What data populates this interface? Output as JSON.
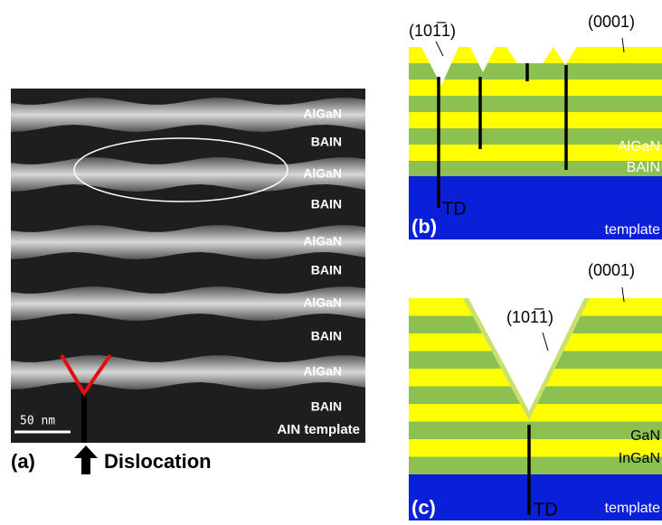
{
  "panel_a": {
    "label": "(a)",
    "layers": [
      "AlGaN",
      "BAIN",
      "AlGaN",
      "BAIN",
      "AlGaN",
      "BAIN",
      "AlGaN",
      "BAIN",
      "AlGaN",
      "BAIN"
    ],
    "base": "AIN template",
    "scale_bar": "50 nm",
    "arrow_label": "Dislocation"
  },
  "panel_b": {
    "label": "(b)",
    "facet": "(101̅1)",
    "plane": "(0001)",
    "layer_top": "AlGaN",
    "layer_bottom": "BAIN",
    "defect": "TD",
    "substrate": "template"
  },
  "panel_c": {
    "label": "(c)",
    "facet": "(101̅1)",
    "plane": "(0001)",
    "layer_top": "GaN",
    "layer_bottom": "InGaN",
    "defect": "TD",
    "substrate": "template"
  }
}
